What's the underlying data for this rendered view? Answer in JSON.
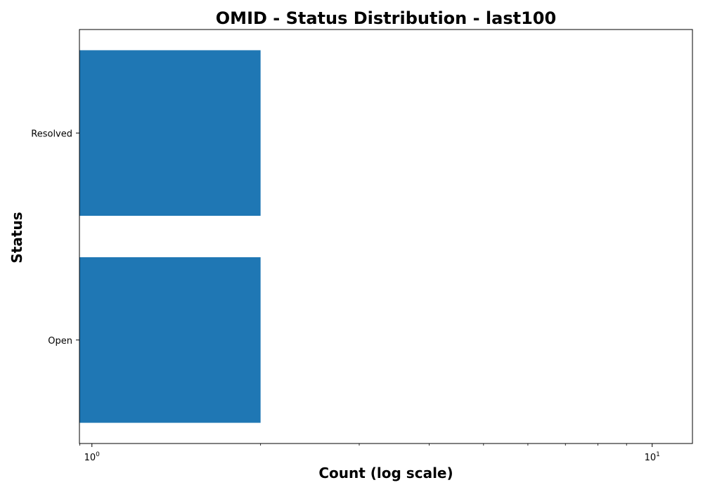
{
  "chart_data": {
    "type": "bar",
    "orientation": "horizontal",
    "title": "OMID - Status Distribution - last100",
    "xlabel": "Count (log scale)",
    "ylabel": "Status",
    "categories": [
      "Resolved",
      "Open"
    ],
    "values": [
      2,
      2
    ],
    "x_scale": "log",
    "xlim": [
      0.95,
      11.8
    ],
    "x_major_ticks": [
      {
        "value": 1,
        "base": "10",
        "exponent": "0"
      },
      {
        "value": 10,
        "base": "10",
        "exponent": "1"
      }
    ],
    "x_minor_ticks": [
      2,
      3,
      4,
      5,
      6,
      7,
      8,
      9
    ],
    "grid": false,
    "bar_color": "#1f77b4"
  }
}
